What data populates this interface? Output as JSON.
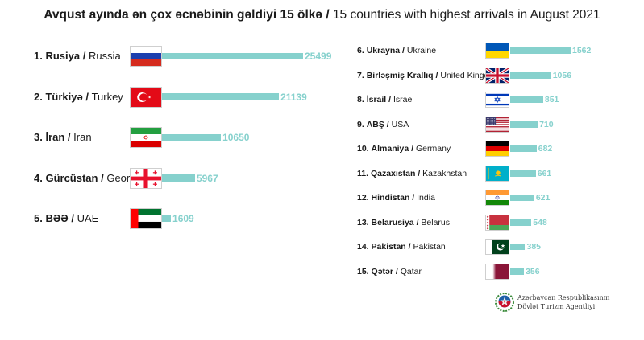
{
  "title": {
    "az": "Avqust ayında ən çox əcnəbinin gəldiyi 15 ölkə",
    "separator": " / ",
    "en": "15 countries with highest arrivals in August 2021"
  },
  "chart_data": {
    "type": "bar",
    "orientation": "horizontal",
    "title": "Avqust ayında ən çox əcnəbinin gəldiyi 15 ölkə / 15 countries with highest arrivals in August 2021",
    "categories": [
      "Russia",
      "Turkey",
      "Iran",
      "Georgia",
      "UAE",
      "Ukraine",
      "United Kingdom",
      "Israel",
      "USA",
      "Germany",
      "Kazakhstan",
      "India",
      "Belarus",
      "Pakistan",
      "Qatar"
    ],
    "values": [
      25499,
      21139,
      10650,
      5967,
      1609,
      1562,
      1056,
      851,
      710,
      682,
      661,
      621,
      548,
      385,
      356
    ],
    "groups": [
      {
        "name": "left",
        "items": [
          {
            "rank": "1.",
            "az": "Rusiya",
            "en": "Russia",
            "value": 25499,
            "flag": "russia"
          },
          {
            "rank": "2.",
            "az": "Türkiyə",
            "en": "Turkey",
            "value": 21139,
            "flag": "turkey"
          },
          {
            "rank": "3.",
            "az": "İran",
            "en": "Iran",
            "value": 10650,
            "flag": "iran"
          },
          {
            "rank": "4.",
            "az": "Gürcüstan",
            "en": "Georgia",
            "value": 5967,
            "flag": "georgia"
          },
          {
            "rank": "5.",
            "az": "BƏƏ",
            "en": "UAE",
            "value": 1609,
            "flag": "uae"
          }
        ]
      },
      {
        "name": "right",
        "items": [
          {
            "rank": "6.",
            "az": "Ukrayna",
            "en": "Ukraine",
            "value": 1562,
            "flag": "ukraine"
          },
          {
            "rank": "7.",
            "az": "Birləşmiş Krallıq",
            "en": "United Kingdom",
            "value": 1056,
            "flag": "uk"
          },
          {
            "rank": "8.",
            "az": "İsrail",
            "en": "Israel",
            "value": 851,
            "flag": "israel"
          },
          {
            "rank": "9.",
            "az": "ABŞ",
            "en": "USA",
            "value": 710,
            "flag": "usa"
          },
          {
            "rank": "10.",
            "az": "Almaniya",
            "en": "Germany",
            "value": 682,
            "flag": "germany"
          },
          {
            "rank": "11.",
            "az": "Qazaxıstan",
            "en": "Kazakhstan",
            "value": 661,
            "flag": "kazakhstan"
          },
          {
            "rank": "12.",
            "az": "Hindistan",
            "en": "India",
            "value": 621,
            "flag": "india"
          },
          {
            "rank": "13.",
            "az": "Belarusiya",
            "en": "Belarus",
            "value": 548,
            "flag": "belarus"
          },
          {
            "rank": "14.",
            "az": "Pakistan",
            "en": "Pakistan",
            "value": 385,
            "flag": "pakistan"
          },
          {
            "rank": "15.",
            "az": "Qətər",
            "en": "Qatar",
            "value": 356,
            "flag": "qatar"
          }
        ]
      }
    ],
    "bar_color": "#86d1cd",
    "grid": false,
    "legend": "none"
  },
  "agency": {
    "line1": "Azərbaycan Respublikasının",
    "line2": "Dövlət Turizm Agentliyi",
    "logo_icon": "azerbaijan-emblem-icon"
  }
}
